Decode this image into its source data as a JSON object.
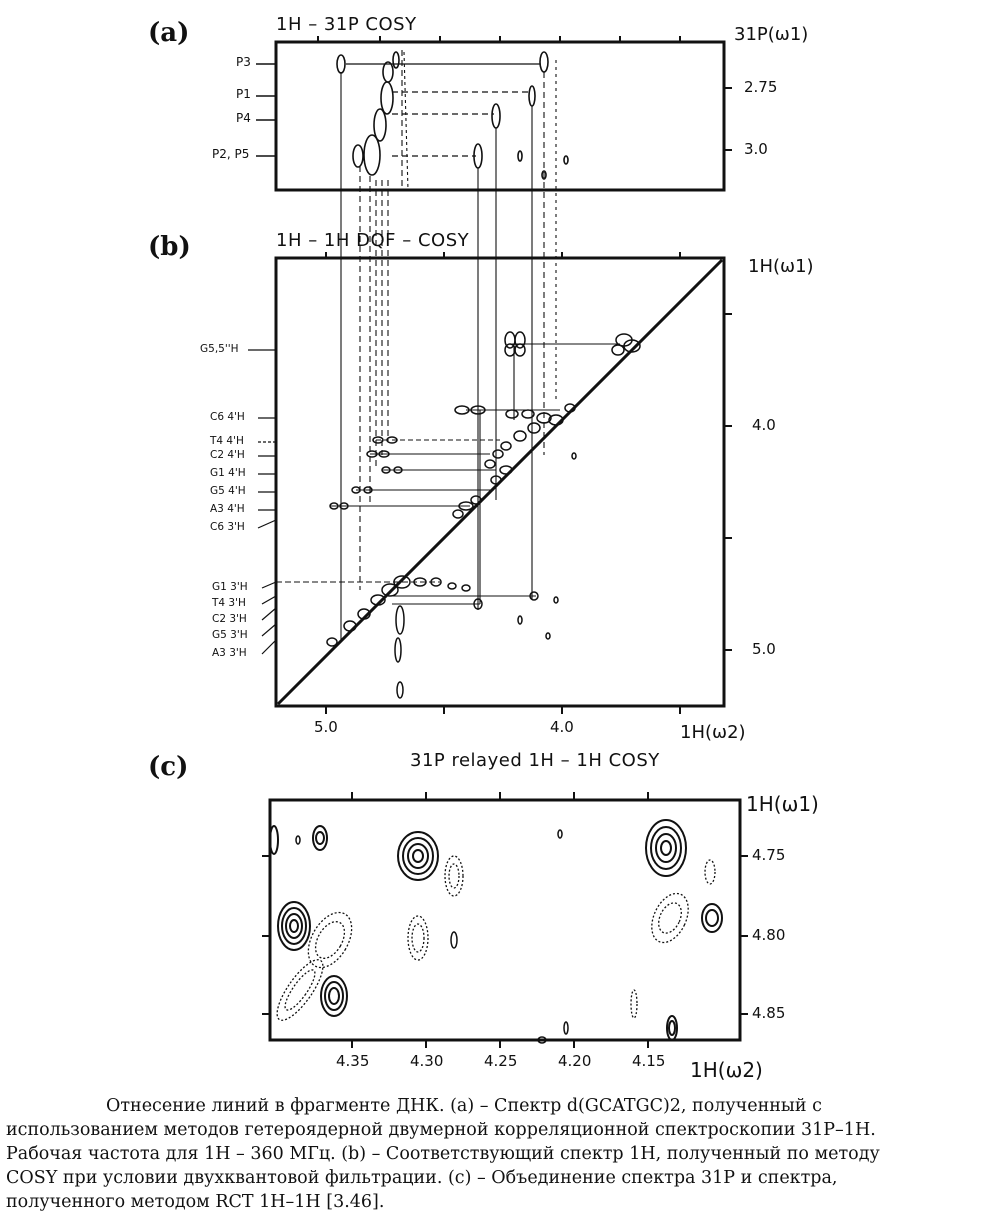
{
  "panels": {
    "a": {
      "label": "(a)",
      "title": "1H – 31P  COSY",
      "axis_right": "31P(ω1)",
      "right_ticks": [
        "2.75",
        "3.0"
      ],
      "row_labels": [
        "P3",
        "P1",
        "P4",
        "P2, P5"
      ]
    },
    "b": {
      "label": "(b)",
      "title": "1H – 1H  DQF – COSY",
      "axis_right": "1H(ω1)",
      "axis_bottom": "1H(ω2)",
      "right_ticks": [
        "4.0",
        "5.0"
      ],
      "bottom_ticks": [
        "5.0",
        "4.0"
      ],
      "row_labels": [
        "G5,5''H",
        "C6 4'H",
        "T4 4'H",
        "C2 4'H",
        "G1 4'H",
        "G5 4'H",
        "A3 4'H",
        "C6 3'H",
        "G1 3'H",
        "T4 3'H",
        "C2 3'H",
        "G5 3'H",
        "A3 3'H"
      ]
    },
    "c": {
      "label": "(c)",
      "title": "31P  relayed  1H – 1H  COSY",
      "axis_right": "1H(ω1)",
      "axis_bottom": "1H(ω2)",
      "right_ticks": [
        "4.75",
        "4.80",
        "4.85"
      ],
      "bottom_ticks": [
        "4.35",
        "4.30",
        "4.25",
        "4.20",
        "4.15"
      ]
    }
  },
  "caption": {
    "line1": "Отнесение линий в фрагменте ДНК. (a) – Спектр d(GCATGC)2, полученный с",
    "line2": "использованием методов гетероядерной двумерной корреляционной спектроскопии 31P–1H.",
    "line3": "Рабочая частота для 1H – 360 МГц. (b) – Соответствующий спектр 1H, полученный по методу",
    "line4": "COSY при условии двухквантовой фильтрации. (c) – Объединение спектра 31P и спектра,",
    "line5": "полученного методом RCT 1H–1H [3.46]."
  }
}
